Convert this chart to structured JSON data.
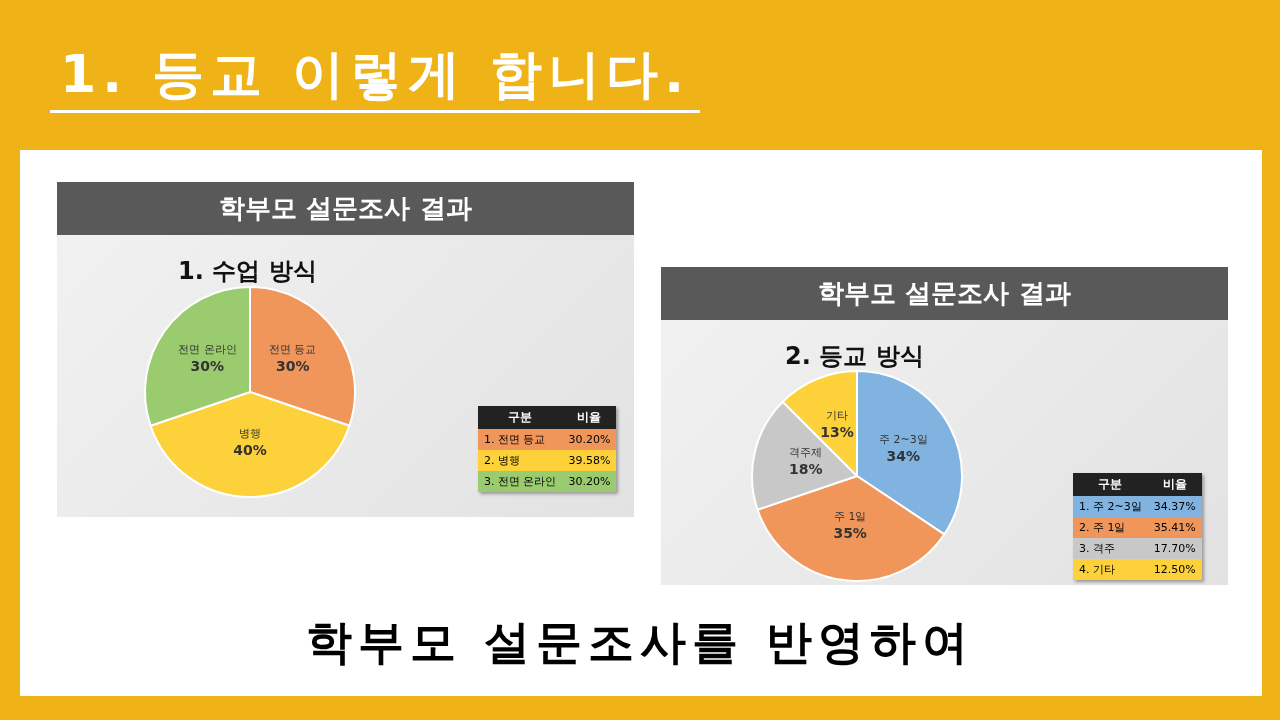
{
  "chart_data": [
    {
      "type": "other",
      "title": "1. 등교 이렇게 합니다."
    },
    {
      "type": "pie",
      "title": "학부모 설문조사 결과",
      "subtitle": "1. 수업 방식",
      "categories": [
        "전면 등교",
        "병행",
        "전면 온라인"
      ],
      "values": [
        30.2,
        39.58,
        30.2
      ],
      "colors": [
        "#f0965a",
        "#fdd13a",
        "#9bcb6f"
      ],
      "value_labels": [
        "30%",
        "40%",
        "30%"
      ],
      "annotations": [
        "구분",
        "비율",
        "1. 전면 등교",
        "30.20%",
        "2. 병행",
        "39.58%",
        "3. 전면 온라인",
        "30.20%"
      ]
    },
    {
      "type": "pie",
      "title": "학부모 설문조사 결과",
      "subtitle": "2. 등교 방식",
      "categories": [
        "주 2~3일",
        "주 1일",
        "격주제",
        "기타"
      ],
      "values": [
        34.37,
        35.41,
        17.7,
        12.5
      ],
      "colors": [
        "#80b3e0",
        "#f0965a",
        "#c8c8c8",
        "#fdd13a"
      ],
      "value_labels": [
        "34%",
        "35%",
        "18%",
        "13%"
      ],
      "annotations": [
        "구분",
        "비율",
        "1. 주 2~3일",
        "34.37%",
        "2. 주 1일",
        "35.41%",
        "3. 격주",
        "17.70%",
        "4. 기타",
        "12.50%"
      ]
    },
    {
      "type": "other",
      "title": "학부모 설문조사를 반영하여"
    }
  ]
}
